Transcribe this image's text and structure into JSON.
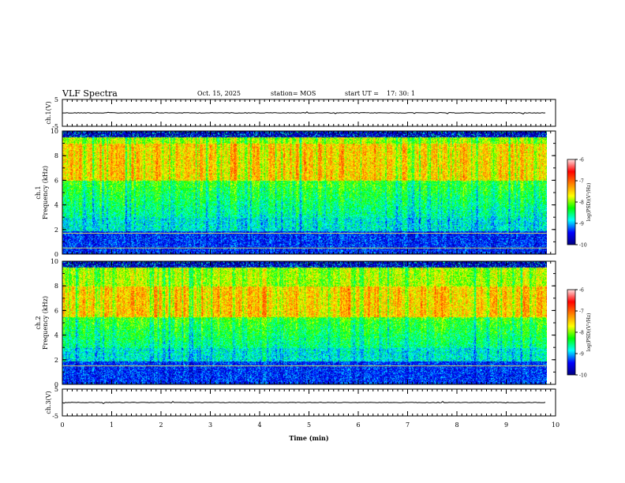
{
  "header": {
    "title": "VLF Spectra",
    "date": "Oct. 15, 2025",
    "station": "station= MOS",
    "start_label": "start UT =",
    "start_time": "17: 30: 1"
  },
  "chart_data": {
    "type": "heatmap",
    "title": "VLF Spectra",
    "xlabel": "Time (min)",
    "xlim": [
      0,
      10
    ],
    "xticks": [
      0,
      1,
      2,
      3,
      4,
      5,
      6,
      7,
      8,
      9,
      10
    ],
    "data_end_min": 9.82,
    "panels": [
      {
        "name": "ch.1(V)",
        "kind": "waveform",
        "ylabel": "ch.1(V)",
        "ylim": [
          -5,
          5
        ],
        "yticks": [
          5,
          -5
        ],
        "baseline": 0
      },
      {
        "name": "ch.1",
        "kind": "spectrogram",
        "ylabel_top": "ch.1",
        "ylabel": "Frequency (kHz)",
        "ylim": [
          0,
          10
        ],
        "yticks": [
          0,
          2,
          4,
          6,
          8,
          10
        ],
        "colorbar": {
          "label": "log(PSD)(V²/Hz)",
          "range": [
            -10,
            -6
          ],
          "ticks": [
            -6,
            -7,
            -8,
            -9,
            -10
          ]
        },
        "band_lines_khz": [
          1.7,
          0.5
        ],
        "peak_band_khz": [
          6.0,
          9.0
        ]
      },
      {
        "name": "ch.2",
        "kind": "spectrogram",
        "ylabel_top": "ch.2",
        "ylabel": "Frequency (kHz)",
        "ylim": [
          0,
          10
        ],
        "yticks": [
          0,
          2,
          4,
          6,
          8,
          10
        ],
        "colorbar": {
          "label": "log(PSD)(V²/Hz)",
          "range": [
            -10,
            -6
          ],
          "ticks": [
            -6,
            -7,
            -8,
            -9,
            -10
          ]
        },
        "band_lines_khz": [
          1.5
        ],
        "peak_band_khz": [
          5.5,
          8.0
        ]
      },
      {
        "name": "ch.3(V)",
        "kind": "waveform",
        "ylabel": "ch.3(V)",
        "ylim": [
          -5,
          5
        ],
        "yticks": [
          5,
          -5
        ],
        "baseline": 0
      }
    ],
    "colormap": [
      "#000080",
      "#0000ff",
      "#00ffff",
      "#00ff00",
      "#ffff00",
      "#ff8000",
      "#ff0000",
      "#ffe0e0"
    ]
  }
}
